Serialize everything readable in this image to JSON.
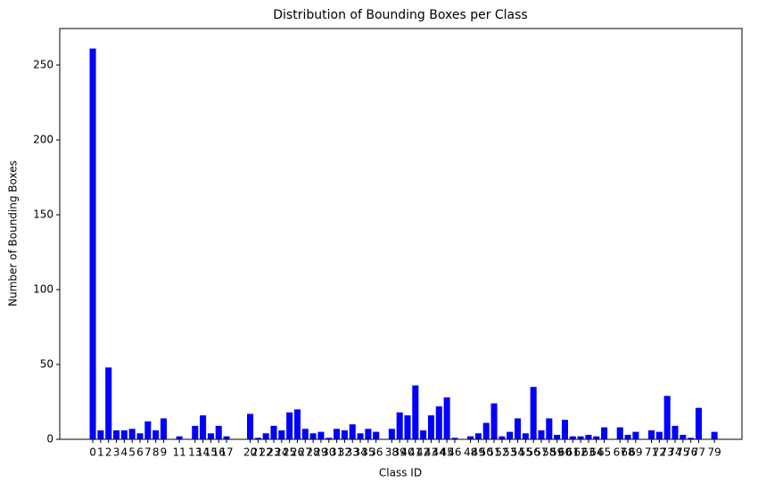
{
  "chart_data": {
    "type": "bar",
    "title": "Distribution of Bounding Boxes per Class",
    "xlabel": "Class ID",
    "ylabel": "Number of Bounding Boxes",
    "x": [
      0,
      1,
      2,
      3,
      4,
      5,
      6,
      7,
      8,
      9,
      11,
      13,
      14,
      15,
      16,
      17,
      20,
      21,
      22,
      23,
      24,
      25,
      26,
      27,
      28,
      29,
      30,
      31,
      32,
      33,
      34,
      35,
      36,
      38,
      39,
      40,
      41,
      42,
      43,
      44,
      45,
      46,
      48,
      49,
      50,
      51,
      52,
      53,
      54,
      55,
      56,
      57,
      58,
      59,
      60,
      61,
      62,
      63,
      64,
      65,
      67,
      68,
      69,
      71,
      72,
      73,
      74,
      75,
      76,
      77,
      79
    ],
    "values": [
      261,
      6,
      48,
      6,
      6,
      7,
      4,
      12,
      6,
      14,
      2,
      9,
      16,
      4,
      9,
      2,
      17,
      1,
      4,
      9,
      6,
      18,
      20,
      7,
      4,
      5,
      1,
      7,
      6,
      10,
      4,
      7,
      5,
      7,
      18,
      16,
      36,
      6,
      16,
      22,
      28,
      1,
      2,
      4,
      11,
      24,
      2,
      5,
      14,
      4,
      35,
      6,
      14,
      3,
      13,
      2,
      2,
      3,
      2,
      8,
      8,
      3,
      5,
      6,
      5,
      29,
      9,
      3,
      1,
      21,
      5
    ],
    "color": "#0000ff",
    "xlim": [
      -4.2,
      82.5
    ],
    "ylim": [
      0,
      274.4
    ],
    "yticks": [
      0,
      50,
      100,
      150,
      200,
      250
    ]
  }
}
